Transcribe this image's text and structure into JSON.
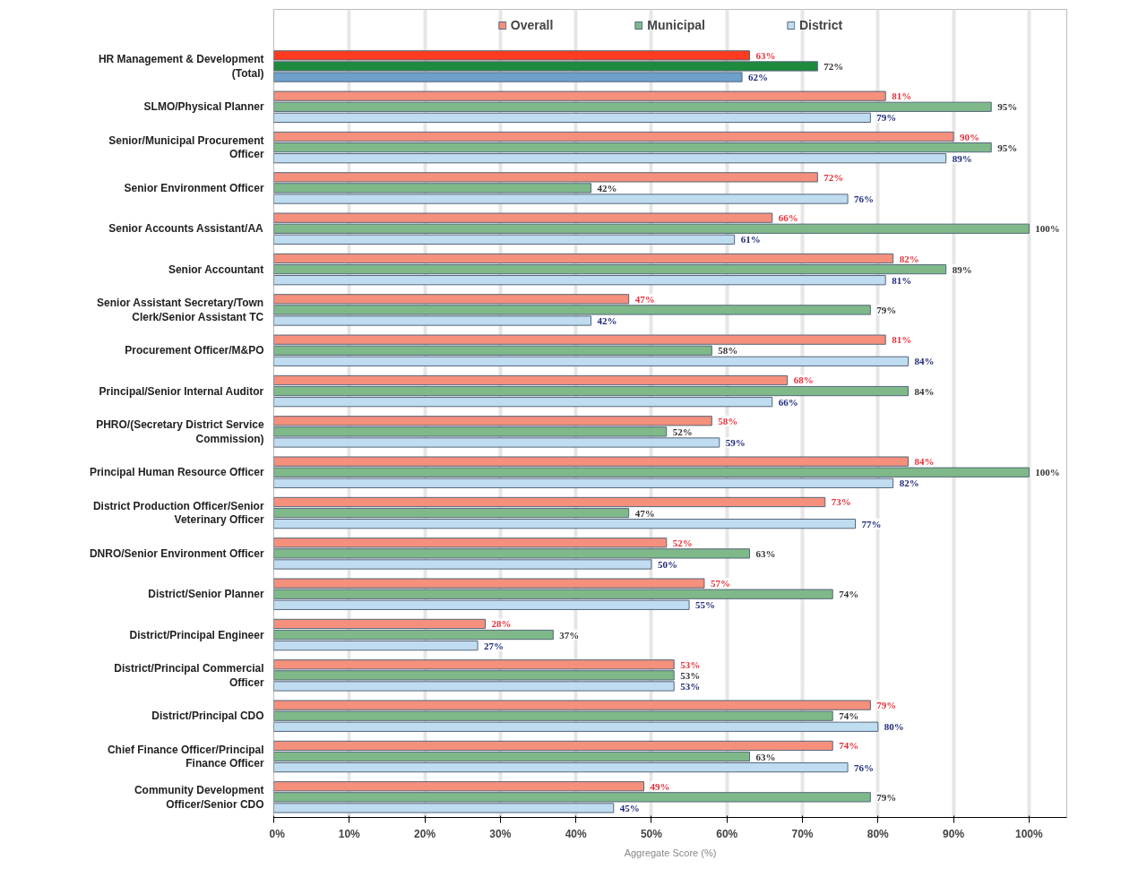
{
  "chart_data": {
    "type": "bar",
    "orientation": "horizontal",
    "xlabel": "Aggregate Score (%)",
    "categories": [
      "HR Management & Development (Total)",
      "SLMO/Physical Planner",
      "Senior/Municipal Procurement Officer",
      "Senior Environment Officer",
      "Senior Accounts Assistant/AA",
      "Senior Accountant",
      "Senior Assistant Secretary/Town Clerk/Senior Assistant TC",
      "Procurement Officer/M&PO",
      "Principal/Senior Internal Auditor",
      "PHRO/(Secretary District Service Commission)",
      "Principal Human Resource Officer",
      "District Production Officer/Senior Veterinary Officer",
      "DNRO/Senior Environment Officer",
      "District/Senior Planner",
      "District/Principal Engineer",
      "District/Principal Commercial Officer",
      "District/Principal CDO",
      "Chief Finance Officer/Principal Finance Officer",
      "Community Development Officer/Senior CDO"
    ],
    "series": [
      {
        "name": "Overall",
        "color": "#f4907c",
        "colors": [
          "#ff3b1f",
          "#f4907c",
          "#f4907c",
          "#f4907c",
          "#f4907c",
          "#f4907c",
          "#f4907c",
          "#f4907c",
          "#f4907c",
          "#f4907c",
          "#f4907c",
          "#f4907c",
          "#f4907c",
          "#f4907c",
          "#f4907c",
          "#f4907c",
          "#f4907c",
          "#f4907c",
          "#f4907c"
        ],
        "values": [
          63,
          81,
          90,
          72,
          66,
          82,
          47,
          81,
          68,
          58,
          84,
          73,
          52,
          57,
          28,
          53,
          79,
          74,
          49
        ],
        "value_labels": [
          "63%",
          "81%",
          "90%",
          "72%",
          "66%",
          "82%",
          "47%",
          "81%",
          "68%",
          "58%",
          "84%",
          "73%",
          "52%",
          "57%",
          "28%",
          "53%",
          "79%",
          "74%",
          "49%"
        ]
      },
      {
        "name": "Municipal",
        "color": "#7fb98a",
        "colors": [
          "#1e8a3e",
          "#7fb98a",
          "#7fb98a",
          "#7fb98a",
          "#7fb98a",
          "#7fb98a",
          "#7fb98a",
          "#7fb98a",
          "#7fb98a",
          "#7fb98a",
          "#7fb98a",
          "#7fb98a",
          "#7fb98a",
          "#7fb98a",
          "#7fb98a",
          "#7fb98a",
          "#7fb98a",
          "#7fb98a",
          "#7fb98a"
        ],
        "values": [
          72,
          95,
          95,
          42,
          100,
          89,
          79,
          58,
          84,
          52,
          100,
          47,
          63,
          74,
          37,
          53,
          74,
          63,
          79
        ],
        "value_labels": [
          "72%",
          "95%",
          "95%",
          "42%",
          "100%",
          "89%",
          "79%",
          "58%",
          "84%",
          "52%",
          "100%",
          "47%",
          "63%",
          "74%",
          "37%",
          "53%",
          "74%",
          "63%",
          "79%"
        ]
      },
      {
        "name": "District",
        "color": "#bfdcf0",
        "colors": [
          "#6fa0cc",
          "#bfdcf0",
          "#bfdcf0",
          "#bfdcf0",
          "#bfdcf0",
          "#bfdcf0",
          "#bfdcf0",
          "#bfdcf0",
          "#bfdcf0",
          "#bfdcf0",
          "#bfdcf0",
          "#bfdcf0",
          "#bfdcf0",
          "#bfdcf0",
          "#bfdcf0",
          "#bfdcf0",
          "#bfdcf0",
          "#bfdcf0",
          "#bfdcf0"
        ],
        "values": [
          62,
          79,
          89,
          76,
          61,
          81,
          42,
          84,
          66,
          59,
          82,
          77,
          50,
          55,
          27,
          53,
          80,
          76,
          45
        ],
        "value_labels": [
          "62%",
          "79%",
          "89%",
          "76%",
          "61%",
          "81%",
          "42%",
          "84%",
          "66%",
          "59%",
          "82%",
          "77%",
          "50%",
          "55%",
          "27%",
          "53%",
          "80%",
          "76%",
          "45%"
        ]
      }
    ],
    "xlim": [
      0,
      105
    ],
    "xticks": [
      {
        "value": 0,
        "label": "0%"
      },
      {
        "value": 10,
        "label": "10%"
      },
      {
        "value": 20,
        "label": "20%"
      },
      {
        "value": 30,
        "label": "30%"
      },
      {
        "value": 40,
        "label": "40%"
      },
      {
        "value": 50,
        "label": "50%"
      },
      {
        "value": 60,
        "label": "60%"
      },
      {
        "value": 70,
        "label": "70%"
      },
      {
        "value": 80,
        "label": "80%"
      },
      {
        "value": 90,
        "label": "90%"
      },
      {
        "value": 100,
        "label": "100%"
      }
    ],
    "grid": "x",
    "legend": "top"
  }
}
